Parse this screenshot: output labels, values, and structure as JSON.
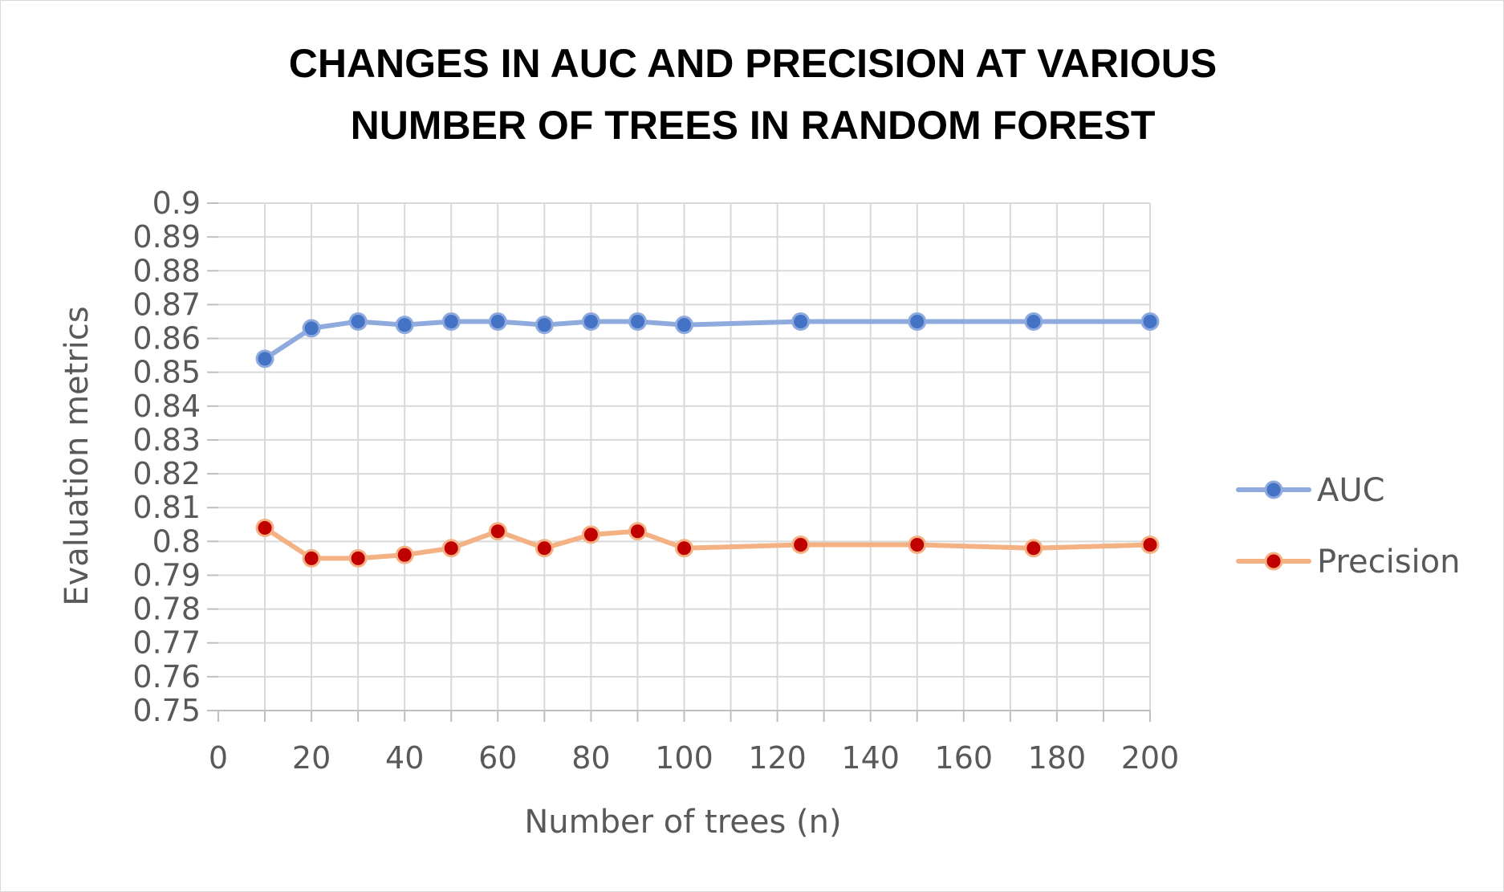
{
  "chart_data": {
    "type": "line",
    "title_lines": [
      "CHANGES IN AUC AND PRECISION AT VARIOUS",
      "NUMBER OF TREES IN RANDOM FOREST"
    ],
    "xlabel": "Number of trees (n)",
    "ylabel": "Evaluation metrics",
    "xlim": [
      0,
      200
    ],
    "ylim": [
      0.75,
      0.9
    ],
    "x_ticks": [
      "0",
      "20",
      "40",
      "60",
      "80",
      "100",
      "120",
      "140",
      "160",
      "180",
      "200"
    ],
    "y_ticks": [
      "0.75",
      "0.76",
      "0.77",
      "0.78",
      "0.79",
      "0.8",
      "0.81",
      "0.82",
      "0.83",
      "0.84",
      "0.85",
      "0.86",
      "0.87",
      "0.88",
      "0.89",
      "0.9"
    ],
    "grid": true,
    "legend_position": "right",
    "x": [
      10,
      20,
      30,
      40,
      50,
      60,
      70,
      80,
      90,
      100,
      125,
      150,
      175,
      200
    ],
    "series": [
      {
        "name": "AUC",
        "line_color": "#8faadc",
        "marker_fill": "#4472c4",
        "marker_edge": "#8faadc",
        "values": [
          0.854,
          0.863,
          0.865,
          0.864,
          0.865,
          0.865,
          0.864,
          0.865,
          0.865,
          0.864,
          0.865,
          0.865,
          0.865,
          0.865
        ]
      },
      {
        "name": "Precision",
        "line_color": "#f4b183",
        "marker_fill": "#c00000",
        "marker_edge": "#f4b183",
        "values": [
          0.804,
          0.795,
          0.795,
          0.796,
          0.798,
          0.803,
          0.798,
          0.802,
          0.803,
          0.798,
          0.799,
          0.799,
          0.798,
          0.799
        ]
      }
    ],
    "colors": {
      "grid": "#d9d9d9",
      "axis": "#bfbfbf",
      "text": "#595959"
    }
  }
}
